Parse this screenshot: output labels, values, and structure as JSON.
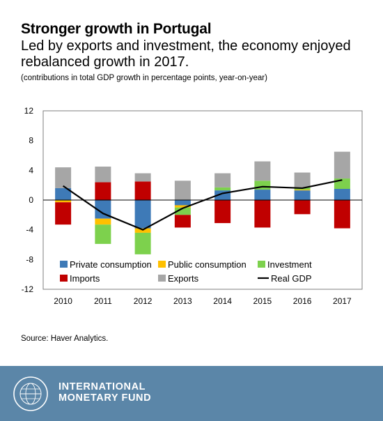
{
  "header": {
    "title": "Stronger growth in Portugal",
    "subtitle": "Led by exports and investment, the economy enjoyed rebalanced growth in 2017.",
    "note": "(contributions in total GDP growth in percentage points, year-on-year)"
  },
  "source": "Source: Haver Analytics.",
  "footer": {
    "org_line1": "INTERNATIONAL",
    "org_line2": "MONETARY FUND",
    "seal_text": "INTERNATIONAL MONETARY FUND",
    "bg_color": "#5b86a8"
  },
  "chart_data": {
    "type": "bar",
    "stacked": true,
    "categories": [
      "2010",
      "2011",
      "2012",
      "2013",
      "2014",
      "2015",
      "2016",
      "2017"
    ],
    "ylim": [
      -12,
      12
    ],
    "yticks": [
      -12,
      -8,
      -4,
      0,
      4,
      8,
      12
    ],
    "grid": false,
    "series": [
      {
        "name": "Private consumption",
        "kind": "bar",
        "color": "#3e7ab7",
        "values": [
          1.6,
          -2.5,
          -3.8,
          -0.7,
          1.3,
          1.4,
          1.3,
          1.5
        ]
      },
      {
        "name": "Public consumption",
        "kind": "bar",
        "color": "#ffc000",
        "values": [
          -0.3,
          -0.8,
          -0.6,
          -0.3,
          0.0,
          0.0,
          0.1,
          0.0
        ]
      },
      {
        "name": "Investment",
        "kind": "bar",
        "color": "#7dd14d",
        "values": [
          0.0,
          -2.6,
          -2.9,
          -1.0,
          0.4,
          1.2,
          0.3,
          1.4
        ]
      },
      {
        "name": "Imports",
        "kind": "bar",
        "color": "#c00000",
        "values": [
          -3.0,
          2.4,
          2.5,
          -1.7,
          -3.1,
          -3.7,
          -1.9,
          -3.8
        ]
      },
      {
        "name": "Exports",
        "kind": "bar",
        "color": "#a6a6a6",
        "values": [
          2.8,
          2.1,
          1.1,
          2.6,
          1.9,
          2.6,
          2.0,
          3.6
        ]
      },
      {
        "name": "Real GDP",
        "kind": "line",
        "color": "#000000",
        "values": [
          1.9,
          -1.8,
          -4.0,
          -1.1,
          0.9,
          1.8,
          1.6,
          2.7
        ]
      }
    ],
    "legend_position": "bottom-inside"
  }
}
